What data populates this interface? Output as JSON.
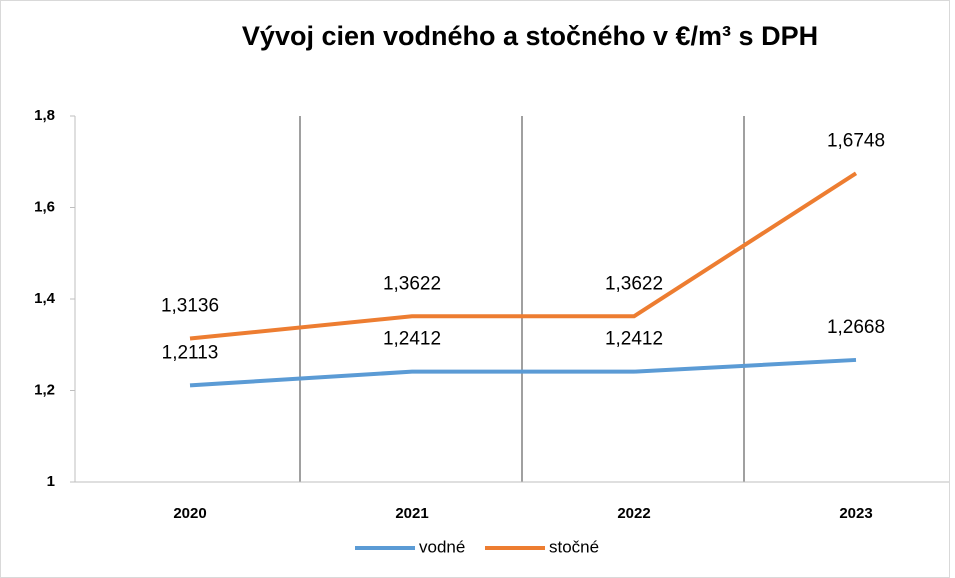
{
  "chart_data": {
    "type": "line",
    "title": "Vývoj cien vodného a stočného v €/m³ s DPH",
    "categories": [
      "2020",
      "2021",
      "2022",
      "2023"
    ],
    "series": [
      {
        "name": "vodné",
        "color": "#5b9bd5",
        "values": [
          1.2113,
          1.2412,
          1.2412,
          1.2668
        ],
        "value_labels": [
          "1,2113",
          "1,2412",
          "1,2412",
          "1,2668"
        ]
      },
      {
        "name": "stočné",
        "color": "#ed7d31",
        "values": [
          1.3136,
          1.3622,
          1.3622,
          1.6748
        ],
        "value_labels": [
          "1,3136",
          "1,3622",
          "1,3622",
          "1,6748"
        ]
      }
    ],
    "ylim": [
      1,
      1.8
    ],
    "yticks": [
      1,
      {
        "value": 1.2,
        "label": "1,2"
      },
      {
        "value": 1.4,
        "label": "1,4"
      },
      {
        "value": 1.6,
        "label": "1,6"
      },
      {
        "value": 1.8,
        "label": "1,8"
      }
    ],
    "legend": "bottom"
  }
}
